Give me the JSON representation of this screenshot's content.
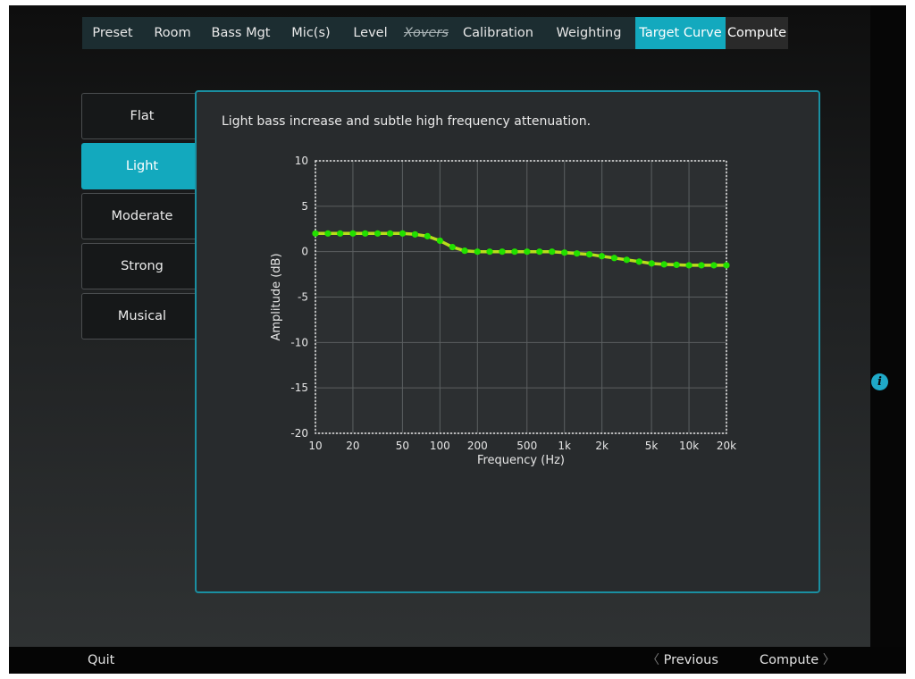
{
  "tabs": [
    {
      "label": "Preset",
      "width": 68
    },
    {
      "label": "Room",
      "width": 66
    },
    {
      "label": "Bass Mgt",
      "width": 87
    },
    {
      "label": "Mic(s)",
      "width": 70
    },
    {
      "label": "Level",
      "width": 63
    },
    {
      "label": "Xovers",
      "width": 62,
      "style": "strike"
    },
    {
      "label": "Calibration",
      "width": 99
    },
    {
      "label": "Weighting",
      "width": 104
    },
    {
      "label": "Target Curve",
      "width": 101,
      "style": "active"
    },
    {
      "label": "Compute",
      "width": 70,
      "style": "dark"
    }
  ],
  "presets": [
    {
      "label": "Flat",
      "active": false
    },
    {
      "label": "Light",
      "active": true
    },
    {
      "label": "Moderate",
      "active": false
    },
    {
      "label": "Strong",
      "active": false
    },
    {
      "label": "Musical",
      "active": false
    }
  ],
  "description": "Light bass increase and subtle high frequency attenuation.",
  "chart_data": {
    "type": "line",
    "xlabel": "Frequency (Hz)",
    "ylabel": "Amplitude (dB)",
    "xscale": "log",
    "xlim": [
      10,
      20000
    ],
    "ylim": [
      -20,
      10
    ],
    "xticks": [
      10,
      20,
      50,
      100,
      200,
      500,
      1000,
      2000,
      5000,
      10000,
      20000
    ],
    "xtick_labels": [
      "10",
      "20",
      "50",
      "100",
      "200",
      "500",
      "1k",
      "2k",
      "5k",
      "10k",
      "20k"
    ],
    "yticks": [
      10,
      5,
      0,
      -5,
      -10,
      -15,
      -20
    ],
    "grid": true,
    "line_color": "#b8dd1b",
    "marker_color": "#22e000",
    "series": [
      {
        "x": [
          10,
          12.6,
          15.8,
          20,
          25.1,
          31.6,
          39.8,
          50.1,
          63.1,
          79.4,
          100,
          126,
          158,
          200,
          251,
          316,
          398,
          501,
          631,
          794,
          1000,
          1259,
          1585,
          1995,
          2512,
          3162,
          3981,
          5012,
          6310,
          7943,
          10000,
          12589,
          15849,
          20000
        ],
        "values": [
          2,
          2,
          2,
          2,
          2,
          2,
          2,
          2,
          1.9,
          1.7,
          1.2,
          0.5,
          0.1,
          0,
          0,
          0,
          0,
          0,
          0,
          0,
          -0.1,
          -0.2,
          -0.3,
          -0.5,
          -0.7,
          -0.9,
          -1.1,
          -1.3,
          -1.4,
          -1.45,
          -1.5,
          -1.5,
          -1.5,
          -1.5
        ]
      }
    ]
  },
  "info_icon": "info-icon",
  "info_glyph": "i",
  "bottom": {
    "quit": "Quit",
    "previous": "Previous",
    "compute": "Compute",
    "prev_chevron": "〈",
    "next_chevron": "〉"
  }
}
